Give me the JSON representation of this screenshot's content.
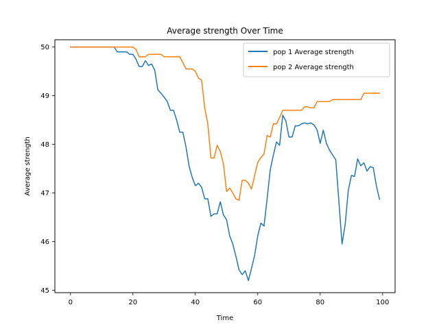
{
  "chart_data": {
    "type": "line",
    "title": "Average strength Over Time",
    "xlabel": "Time",
    "ylabel": "Average strength",
    "xlim": [
      -5,
      104
    ],
    "ylim": [
      44.95,
      50.15
    ],
    "xticks": [
      0,
      20,
      40,
      60,
      80,
      100
    ],
    "yticks": [
      45,
      46,
      47,
      48,
      49,
      50
    ],
    "grid": false,
    "legend_position": "top-right",
    "series": [
      {
        "name": "pop 1 Average strength",
        "color": "#1f77b4",
        "x": [
          0,
          1,
          2,
          3,
          4,
          5,
          6,
          7,
          8,
          9,
          10,
          11,
          12,
          13,
          14,
          15,
          16,
          17,
          18,
          19,
          20,
          21,
          22,
          23,
          24,
          25,
          26,
          27,
          28,
          29,
          30,
          31,
          32,
          33,
          34,
          35,
          36,
          37,
          38,
          39,
          40,
          41,
          42,
          43,
          44,
          45,
          46,
          47,
          48,
          49,
          50,
          51,
          52,
          53,
          54,
          55,
          56,
          57,
          58,
          59,
          60,
          61,
          62,
          63,
          64,
          65,
          66,
          67,
          68,
          69,
          70,
          71,
          72,
          73,
          74,
          75,
          76,
          77,
          78,
          79,
          80,
          81,
          82,
          83,
          84,
          85,
          86,
          87,
          88,
          89,
          90,
          91,
          92,
          93,
          94,
          95,
          96,
          97,
          98,
          99
        ],
        "values": [
          50,
          50,
          50,
          50,
          50,
          50,
          50,
          50,
          50,
          50,
          50,
          50,
          50,
          50,
          50,
          49.9,
          49.9,
          49.9,
          49.9,
          49.85,
          49.85,
          49.75,
          49.6,
          49.6,
          49.72,
          49.62,
          49.65,
          49.52,
          49.12,
          49.05,
          48.97,
          48.88,
          48.7,
          48.7,
          48.5,
          48.25,
          48.25,
          47.95,
          47.55,
          47.32,
          47.15,
          47.2,
          47.12,
          46.88,
          46.88,
          46.52,
          46.57,
          46.57,
          46.82,
          46.55,
          46.45,
          46.12,
          45.95,
          45.7,
          45.42,
          45.32,
          45.4,
          45.2,
          45.45,
          45.72,
          46.12,
          46.38,
          46.32,
          46.88,
          47.48,
          47.78,
          48.05,
          47.98,
          48.6,
          48.48,
          48.15,
          48.15,
          48.38,
          48.38,
          48.42,
          48.44,
          48.42,
          48.44,
          48.4,
          48.3,
          48.02,
          48.29,
          48.02,
          47.88,
          47.78,
          47.68,
          46.82,
          45.95,
          46.35,
          47.05,
          47.36,
          47.34,
          47.7,
          47.56,
          47.62,
          47.45,
          47.54,
          47.52,
          47.15,
          46.87
        ]
      },
      {
        "name": "pop 2 Average strength",
        "color": "#ff7f0e",
        "x": [
          0,
          1,
          2,
          3,
          4,
          5,
          6,
          7,
          8,
          9,
          10,
          11,
          12,
          13,
          14,
          15,
          16,
          17,
          18,
          19,
          20,
          21,
          22,
          23,
          24,
          25,
          26,
          27,
          28,
          29,
          30,
          31,
          32,
          33,
          34,
          35,
          36,
          37,
          38,
          39,
          40,
          41,
          42,
          43,
          44,
          45,
          46,
          47,
          48,
          49,
          50,
          51,
          52,
          53,
          54,
          55,
          56,
          57,
          58,
          59,
          60,
          61,
          62,
          63,
          64,
          65,
          66,
          67,
          68,
          69,
          70,
          71,
          72,
          73,
          74,
          75,
          76,
          77,
          78,
          79,
          80,
          81,
          82,
          83,
          84,
          85,
          86,
          87,
          88,
          89,
          90,
          91,
          92,
          93,
          94,
          95,
          96,
          97,
          98,
          99
        ],
        "values": [
          50,
          50,
          50,
          50,
          50,
          50,
          50,
          50,
          50,
          50,
          50,
          50,
          50,
          50,
          50,
          50,
          50,
          50,
          50,
          50,
          50,
          49.95,
          49.8,
          49.8,
          49.8,
          49.85,
          49.85,
          49.85,
          49.85,
          49.85,
          49.8,
          49.8,
          49.8,
          49.8,
          49.8,
          49.8,
          49.68,
          49.55,
          49.55,
          49.55,
          49.5,
          49.36,
          49.32,
          48.75,
          48.42,
          47.72,
          47.72,
          47.98,
          47.85,
          47.6,
          47.03,
          47.1,
          47.0,
          46.88,
          46.85,
          47.26,
          47.26,
          47.2,
          47.08,
          47.36,
          47.63,
          47.73,
          47.8,
          48.18,
          48.15,
          48.42,
          48.42,
          48.55,
          48.7,
          48.7,
          48.7,
          48.7,
          48.7,
          48.7,
          48.7,
          48.77,
          48.77,
          48.75,
          48.75,
          48.88,
          48.88,
          48.88,
          48.88,
          48.88,
          48.92,
          48.92,
          48.92,
          48.92,
          48.92,
          48.92,
          48.92,
          48.92,
          48.92,
          48.92,
          49.05,
          49.05,
          49.05,
          49.05,
          49.05,
          49.05
        ]
      }
    ]
  }
}
